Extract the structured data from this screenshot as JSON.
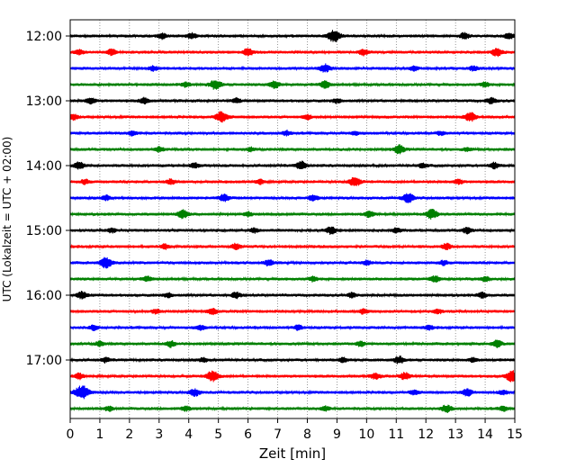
{
  "chart_data": {
    "type": "line",
    "subtype": "helicorder",
    "xlabel": "Zeit  [min]",
    "ylabel": "UTC (Lokalzeit = UTC + 02:00)",
    "xlim": [
      0,
      15
    ],
    "x_ticks": [
      0,
      1,
      2,
      3,
      4,
      5,
      6,
      7,
      8,
      9,
      10,
      11,
      12,
      13,
      14,
      15
    ],
    "y_tick_labels": [
      "12:00",
      "13:00",
      "14:00",
      "15:00",
      "16:00",
      "17:00"
    ],
    "grid": "vertical dotted",
    "trace_interval_min": 15,
    "trace_colors": [
      "#000000",
      "#ff0000",
      "#0000ff",
      "#008000"
    ],
    "traces": [
      {
        "start": "12:00",
        "color": "#000000",
        "events": [
          [
            3.1,
            0.5
          ],
          [
            4.1,
            0.5
          ],
          [
            8.9,
            1.0
          ],
          [
            13.3,
            0.5
          ],
          [
            14.8,
            0.5
          ]
        ]
      },
      {
        "start": "12:15",
        "color": "#ff0000",
        "events": [
          [
            0.3,
            0.4
          ],
          [
            1.4,
            0.5
          ],
          [
            6.0,
            0.6
          ],
          [
            9.9,
            0.5
          ],
          [
            14.4,
            0.7
          ]
        ]
      },
      {
        "start": "12:30",
        "color": "#0000ff",
        "events": [
          [
            2.8,
            0.4
          ],
          [
            8.6,
            0.7
          ],
          [
            11.6,
            0.4
          ],
          [
            13.6,
            0.4
          ]
        ]
      },
      {
        "start": "12:45",
        "color": "#008000",
        "events": [
          [
            3.9,
            0.4
          ],
          [
            4.9,
            0.8
          ],
          [
            6.9,
            0.6
          ],
          [
            8.6,
            0.6
          ],
          [
            14.0,
            0.4
          ]
        ]
      },
      {
        "start": "13:00",
        "color": "#000000",
        "events": [
          [
            0.7,
            0.5
          ],
          [
            2.5,
            0.5
          ],
          [
            5.6,
            0.4
          ],
          [
            9.0,
            0.4
          ],
          [
            14.2,
            0.5
          ]
        ]
      },
      {
        "start": "13:15",
        "color": "#ff0000",
        "events": [
          [
            0.1,
            0.5
          ],
          [
            5.1,
            0.9
          ],
          [
            8.0,
            0.4
          ],
          [
            13.5,
            0.8
          ]
        ]
      },
      {
        "start": "13:30",
        "color": "#0000ff",
        "events": [
          [
            2.1,
            0.4
          ],
          [
            7.3,
            0.4
          ],
          [
            9.6,
            0.3
          ],
          [
            12.5,
            0.3
          ]
        ]
      },
      {
        "start": "13:45",
        "color": "#008000",
        "events": [
          [
            3.0,
            0.4
          ],
          [
            6.1,
            0.3
          ],
          [
            11.1,
            0.7
          ],
          [
            13.4,
            0.3
          ]
        ]
      },
      {
        "start": "14:00",
        "color": "#000000",
        "events": [
          [
            0.3,
            0.6
          ],
          [
            4.2,
            0.4
          ],
          [
            7.8,
            0.7
          ],
          [
            11.9,
            0.4
          ],
          [
            14.3,
            0.5
          ]
        ]
      },
      {
        "start": "14:15",
        "color": "#ff0000",
        "events": [
          [
            0.5,
            0.4
          ],
          [
            3.4,
            0.4
          ],
          [
            6.4,
            0.4
          ],
          [
            9.6,
            0.8
          ],
          [
            13.1,
            0.4
          ]
        ]
      },
      {
        "start": "14:30",
        "color": "#0000ff",
        "events": [
          [
            1.2,
            0.4
          ],
          [
            5.2,
            0.6
          ],
          [
            8.2,
            0.5
          ],
          [
            11.4,
            0.8
          ]
        ]
      },
      {
        "start": "14:45",
        "color": "#008000",
        "events": [
          [
            3.8,
            0.7
          ],
          [
            6.0,
            0.4
          ],
          [
            10.1,
            0.5
          ],
          [
            12.2,
            0.8
          ]
        ]
      },
      {
        "start": "15:00",
        "color": "#000000",
        "events": [
          [
            1.4,
            0.4
          ],
          [
            6.2,
            0.4
          ],
          [
            8.8,
            0.6
          ],
          [
            11.0,
            0.4
          ],
          [
            13.4,
            0.5
          ]
        ]
      },
      {
        "start": "15:15",
        "color": "#ff0000",
        "events": [
          [
            3.2,
            0.4
          ],
          [
            5.6,
            0.5
          ],
          [
            12.7,
            0.5
          ]
        ]
      },
      {
        "start": "15:30",
        "color": "#0000ff",
        "events": [
          [
            1.2,
            0.9
          ],
          [
            6.7,
            0.5
          ],
          [
            10.0,
            0.4
          ],
          [
            12.6,
            0.4
          ]
        ]
      },
      {
        "start": "15:45",
        "color": "#008000",
        "events": [
          [
            2.6,
            0.4
          ],
          [
            8.2,
            0.4
          ],
          [
            12.3,
            0.5
          ],
          [
            14.0,
            0.4
          ]
        ]
      },
      {
        "start": "16:00",
        "color": "#000000",
        "events": [
          [
            0.4,
            0.6
          ],
          [
            3.3,
            0.4
          ],
          [
            5.6,
            0.5
          ],
          [
            9.5,
            0.4
          ],
          [
            13.9,
            0.5
          ]
        ]
      },
      {
        "start": "16:15",
        "color": "#ff0000",
        "events": [
          [
            2.9,
            0.4
          ],
          [
            4.8,
            0.5
          ],
          [
            9.9,
            0.4
          ],
          [
            12.4,
            0.4
          ]
        ]
      },
      {
        "start": "16:30",
        "color": "#0000ff",
        "events": [
          [
            0.8,
            0.4
          ],
          [
            4.4,
            0.4
          ],
          [
            7.7,
            0.4
          ],
          [
            12.1,
            0.4
          ]
        ]
      },
      {
        "start": "16:45",
        "color": "#008000",
        "events": [
          [
            1.0,
            0.4
          ],
          [
            3.4,
            0.5
          ],
          [
            9.8,
            0.4
          ],
          [
            14.4,
            0.6
          ]
        ]
      },
      {
        "start": "17:00",
        "color": "#000000",
        "events": [
          [
            1.2,
            0.4
          ],
          [
            4.5,
            0.4
          ],
          [
            9.2,
            0.4
          ],
          [
            11.1,
            0.6
          ],
          [
            13.6,
            0.4
          ]
        ]
      },
      {
        "start": "17:15",
        "color": "#ff0000",
        "events": [
          [
            0.3,
            0.5
          ],
          [
            4.8,
            0.9
          ],
          [
            10.3,
            0.5
          ],
          [
            11.3,
            0.6
          ],
          [
            14.9,
            0.9
          ]
        ]
      },
      {
        "start": "17:30",
        "color": "#0000ff",
        "events": [
          [
            0.4,
            1.2
          ],
          [
            4.2,
            0.6
          ],
          [
            11.6,
            0.4
          ],
          [
            13.4,
            0.6
          ],
          [
            14.6,
            0.4
          ]
        ]
      },
      {
        "start": "17:45",
        "color": "#008000",
        "events": [
          [
            1.3,
            0.4
          ],
          [
            3.9,
            0.4
          ],
          [
            8.6,
            0.4
          ],
          [
            12.7,
            0.6
          ],
          [
            14.6,
            0.4
          ]
        ]
      }
    ]
  }
}
